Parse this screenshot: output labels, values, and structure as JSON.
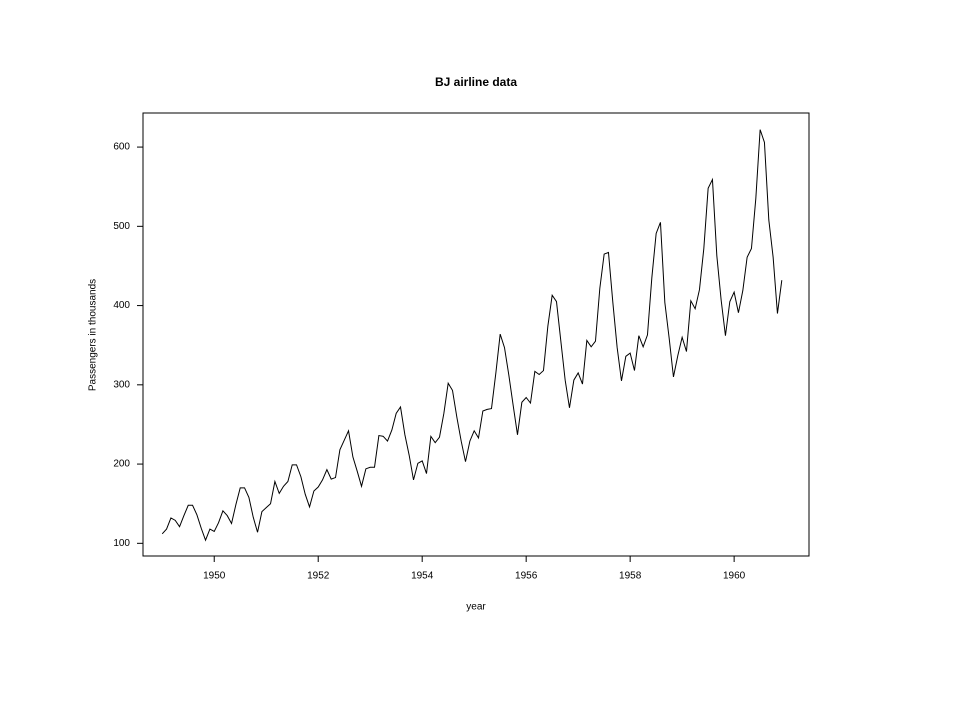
{
  "chart_data": {
    "type": "line",
    "title": "BJ airline data",
    "xlabel": "year",
    "ylabel": "Passengers in thousands",
    "x": [
      1949,
      1949.083,
      1949.167,
      1949.25,
      1949.333,
      1949.417,
      1949.5,
      1949.583,
      1949.667,
      1949.75,
      1949.833,
      1949.917,
      1950,
      1950.083,
      1950.167,
      1950.25,
      1950.333,
      1950.417,
      1950.5,
      1950.583,
      1950.667,
      1950.75,
      1950.833,
      1950.917,
      1951,
      1951.083,
      1951.167,
      1951.25,
      1951.333,
      1951.417,
      1951.5,
      1951.583,
      1951.667,
      1951.75,
      1951.833,
      1951.917,
      1952,
      1952.083,
      1952.167,
      1952.25,
      1952.333,
      1952.417,
      1952.5,
      1952.583,
      1952.667,
      1952.75,
      1952.833,
      1952.917,
      1953,
      1953.083,
      1953.167,
      1953.25,
      1953.333,
      1953.417,
      1953.5,
      1953.583,
      1953.667,
      1953.75,
      1953.833,
      1953.917,
      1954,
      1954.083,
      1954.167,
      1954.25,
      1954.333,
      1954.417,
      1954.5,
      1954.583,
      1954.667,
      1954.75,
      1954.833,
      1954.917,
      1955,
      1955.083,
      1955.167,
      1955.25,
      1955.333,
      1955.417,
      1955.5,
      1955.583,
      1955.667,
      1955.75,
      1955.833,
      1955.917,
      1956,
      1956.083,
      1956.167,
      1956.25,
      1956.333,
      1956.417,
      1956.5,
      1956.583,
      1956.667,
      1956.75,
      1956.833,
      1956.917,
      1957,
      1957.083,
      1957.167,
      1957.25,
      1957.333,
      1957.417,
      1957.5,
      1957.583,
      1957.667,
      1957.75,
      1957.833,
      1957.917,
      1958,
      1958.083,
      1958.167,
      1958.25,
      1958.333,
      1958.417,
      1958.5,
      1958.583,
      1958.667,
      1958.75,
      1958.833,
      1958.917,
      1959,
      1959.083,
      1959.167,
      1959.25,
      1959.333,
      1959.417,
      1959.5,
      1959.583,
      1959.667,
      1959.75,
      1959.833,
      1959.917,
      1960,
      1960.083,
      1960.167,
      1960.25,
      1960.333,
      1960.417,
      1960.5,
      1960.583,
      1960.667,
      1960.75,
      1960.833,
      1960.917
    ],
    "series": [
      {
        "color": "#000000",
        "values": [
          112,
          118,
          132,
          129,
          121,
          135,
          148,
          148,
          136,
          119,
          104,
          118,
          115,
          126,
          141,
          135,
          125,
          149,
          170,
          170,
          158,
          133,
          114,
          140,
          145,
          150,
          178,
          163,
          172,
          178,
          199,
          199,
          184,
          162,
          146,
          166,
          171,
          180,
          193,
          181,
          183,
          218,
          230,
          242,
          209,
          191,
          172,
          194,
          196,
          196,
          236,
          235,
          229,
          243,
          264,
          272,
          237,
          211,
          180,
          201,
          204,
          188,
          235,
          227,
          234,
          264,
          302,
          293,
          259,
          229,
          203,
          229,
          242,
          233,
          267,
          269,
          270,
          315,
          364,
          347,
          312,
          274,
          237,
          278,
          284,
          277,
          317,
          313,
          318,
          374,
          413,
          405,
          355,
          306,
          271,
          306,
          315,
          301,
          356,
          348,
          355,
          422,
          465,
          467,
          404,
          347,
          305,
          336,
          340,
          318,
          362,
          348,
          363,
          435,
          491,
          505,
          404,
          359,
          310,
          337,
          360,
          342,
          406,
          396,
          420,
          472,
          548,
          559,
          463,
          407,
          362,
          405,
          417,
          391,
          419,
          461,
          472,
          535,
          622,
          606,
          508,
          461,
          390,
          432
        ]
      }
    ],
    "xlim": [
      1948.63,
      1961.44
    ],
    "xticks": [
      1950,
      1952,
      1954,
      1956,
      1958,
      1960
    ],
    "ylim": [
      84,
      643
    ],
    "yticks": [
      100,
      200,
      300,
      400,
      500,
      600
    ]
  }
}
